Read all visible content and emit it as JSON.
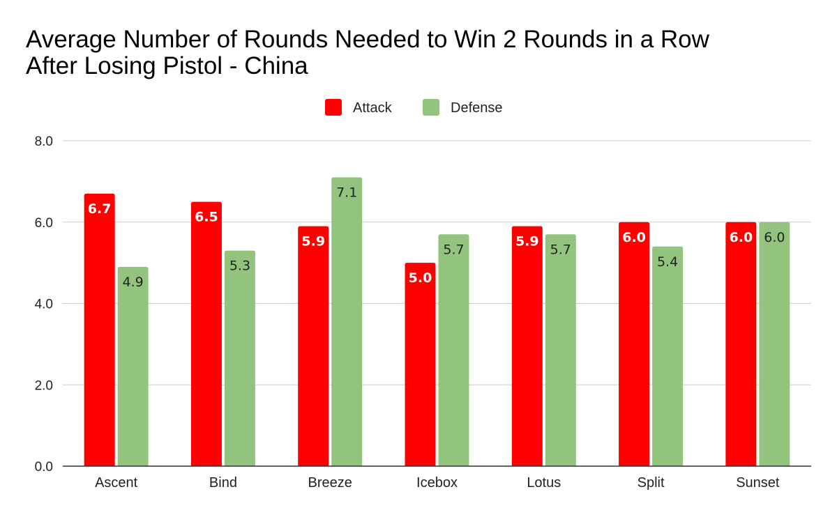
{
  "chart_data": {
    "type": "bar",
    "title_lines": [
      "Average Number of Rounds Needed to Win 2 Rounds in a Row",
      "After Losing Pistol - China"
    ],
    "categories": [
      "Ascent",
      "Bind",
      "Breeze",
      "Icebox",
      "Lotus",
      "Split",
      "Sunset"
    ],
    "series": [
      {
        "name": "Attack",
        "color": "#ff0000",
        "values": [
          6.7,
          6.5,
          5.9,
          5.0,
          5.9,
          6.0,
          6.0
        ],
        "labels": [
          "6.7",
          "6.5",
          "5.9",
          "5.0",
          "5.9",
          "6.0",
          "6.0"
        ]
      },
      {
        "name": "Defense",
        "color": "#93c47d",
        "values": [
          4.9,
          5.3,
          7.1,
          5.7,
          5.7,
          5.4,
          6.0
        ],
        "labels": [
          "4.9",
          "5.3",
          "7.1",
          "5.7",
          "5.7",
          "5.4",
          "6.0"
        ]
      }
    ],
    "ylim": [
      0,
      8
    ],
    "yticks": [
      0,
      2,
      4,
      6,
      8
    ],
    "ytick_labels": [
      "0.0",
      "2.0",
      "4.0",
      "6.0",
      "8.0"
    ],
    "xlabel": "",
    "ylabel": "",
    "grid": true,
    "legend_position": "top-center"
  }
}
